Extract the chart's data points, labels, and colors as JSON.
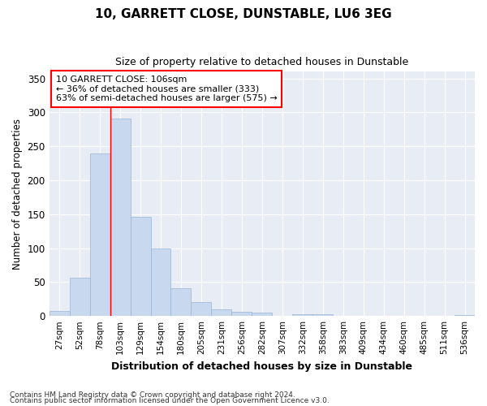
{
  "title": "10, GARRETT CLOSE, DUNSTABLE, LU6 3EG",
  "subtitle": "Size of property relative to detached houses in Dunstable",
  "xlabel": "Distribution of detached houses by size in Dunstable",
  "ylabel": "Number of detached properties",
  "bar_color": "#c8d8ee",
  "bar_edge_color": "#9ab4d4",
  "background_color": "#e8edf5",
  "grid_color": "#ffffff",
  "categories": [
    "27sqm",
    "52sqm",
    "78sqm",
    "103sqm",
    "129sqm",
    "154sqm",
    "180sqm",
    "205sqm",
    "231sqm",
    "256sqm",
    "282sqm",
    "307sqm",
    "332sqm",
    "358sqm",
    "383sqm",
    "409sqm",
    "434sqm",
    "460sqm",
    "485sqm",
    "511sqm",
    "536sqm"
  ],
  "values": [
    7,
    57,
    239,
    291,
    146,
    100,
    41,
    20,
    10,
    6,
    5,
    0,
    3,
    3,
    0,
    0,
    0,
    0,
    0,
    0,
    2
  ],
  "ylim": [
    0,
    360
  ],
  "yticks": [
    0,
    50,
    100,
    150,
    200,
    250,
    300,
    350
  ],
  "property_label": "10 GARRETT CLOSE: 106sqm",
  "annotation_line1": "← 36% of detached houses are smaller (333)",
  "annotation_line2": "63% of semi-detached houses are larger (575) →",
  "red_line_bin_index": 3,
  "footnote1": "Contains HM Land Registry data © Crown copyright and database right 2024.",
  "footnote2": "Contains public sector information licensed under the Open Government Licence v3.0."
}
